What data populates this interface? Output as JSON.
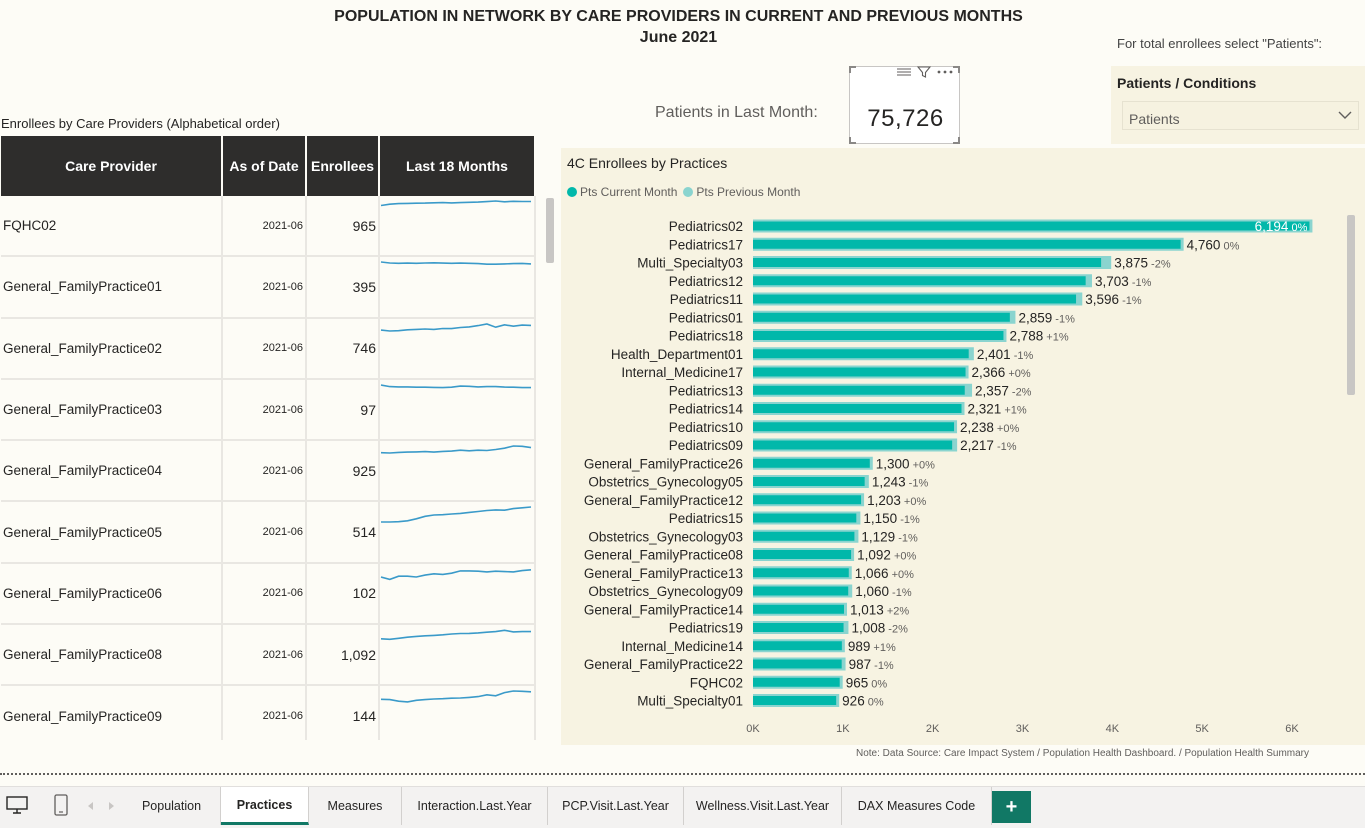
{
  "header": {
    "title_line1": "POPULATION IN NETWORK BY CARE PROVIDERS IN CURRENT AND PREVIOUS MONTHS",
    "title_line2": "June 2021"
  },
  "slicer": {
    "hint": "For total enrollees select \"Patients\":",
    "title": "Patients / Conditions",
    "selected": "Patients"
  },
  "kpi": {
    "label": "Patients in Last Month:",
    "value": "75,726"
  },
  "table": {
    "caption": "Enrollees by Care Providers (Alphabetical order)",
    "headers": [
      "Care Provider",
      "As of Date",
      "Enrollees",
      "Last 18 Months"
    ],
    "rows": [
      {
        "provider": "FQHC02",
        "date": "2021-06",
        "enrollees": "965",
        "trend": [
          0.72,
          0.8,
          0.84,
          0.85,
          0.86,
          0.87,
          0.89,
          0.9,
          0.88,
          0.9,
          0.92,
          0.93,
          0.96,
          1.0,
          0.95,
          0.98,
          0.97,
          0.97
        ]
      },
      {
        "provider": "General_FamilyPractice01",
        "date": "2021-06",
        "enrollees": "395",
        "trend": [
          1.0,
          0.94,
          0.92,
          0.93,
          0.92,
          0.94,
          0.95,
          0.93,
          0.92,
          0.93,
          0.92,
          0.9,
          0.86,
          0.86,
          0.88,
          0.9,
          0.91,
          0.88
        ]
      },
      {
        "provider": "General_FamilyPractice02",
        "date": "2021-06",
        "enrollees": "746",
        "trend": [
          0.62,
          0.56,
          0.58,
          0.64,
          0.66,
          0.69,
          0.66,
          0.72,
          0.71,
          0.78,
          0.82,
          0.9,
          1.0,
          0.8,
          0.95,
          0.86,
          0.93,
          0.91
        ]
      },
      {
        "provider": "General_FamilyPractice03",
        "date": "2021-06",
        "enrollees": "97",
        "trend": [
          1.0,
          0.9,
          0.88,
          0.88,
          0.86,
          0.86,
          0.85,
          0.84,
          0.86,
          0.93,
          0.92,
          0.88,
          0.9,
          0.9,
          0.87,
          0.86,
          0.84,
          0.84
        ]
      },
      {
        "provider": "General_FamilyPractice04",
        "date": "2021-06",
        "enrollees": "925",
        "trend": [
          0.58,
          0.56,
          0.6,
          0.62,
          0.63,
          0.65,
          0.62,
          0.66,
          0.68,
          0.74,
          0.7,
          0.74,
          0.72,
          0.78,
          0.86,
          1.0,
          0.98,
          0.9
        ]
      },
      {
        "provider": "General_FamilyPractice05",
        "date": "2021-06",
        "enrollees": "514",
        "trend": [
          0.06,
          0.06,
          0.08,
          0.14,
          0.26,
          0.42,
          0.5,
          0.52,
          0.56,
          0.6,
          0.66,
          0.72,
          0.78,
          0.82,
          0.8,
          0.9,
          0.95,
          1.0
        ]
      },
      {
        "provider": "General_FamilyPractice06",
        "date": "2021-06",
        "enrollees": "102",
        "trend": [
          0.5,
          0.35,
          0.55,
          0.55,
          0.5,
          0.62,
          0.7,
          0.66,
          0.74,
          0.88,
          0.88,
          0.86,
          0.82,
          0.86,
          0.84,
          0.82,
          0.9,
          0.95
        ]
      },
      {
        "provider": "General_FamilyPractice08",
        "date": "2021-06",
        "enrollees": "1,092",
        "trend": [
          0.45,
          0.42,
          0.48,
          0.55,
          0.6,
          0.64,
          0.66,
          0.7,
          0.75,
          0.78,
          0.79,
          0.82,
          0.86,
          0.9,
          0.98,
          0.88,
          0.9,
          0.9
        ]
      },
      {
        "provider": "General_FamilyPractice09",
        "date": "2021-06",
        "enrollees": "144",
        "trend": [
          0.48,
          0.46,
          0.36,
          0.32,
          0.42,
          0.46,
          0.5,
          0.52,
          0.55,
          0.56,
          0.6,
          0.65,
          0.76,
          0.7,
          0.9,
          1.0,
          0.98,
          0.95
        ]
      }
    ]
  },
  "chart_data": {
    "type": "bar",
    "title": "4C Enrollees by Practices",
    "legend": [
      "Pts Current Month",
      "Pts Previous Month"
    ],
    "categories": [
      "Pediatrics02",
      "Pediatrics17",
      "Multi_Specialty03",
      "Pediatrics12",
      "Pediatrics11",
      "Pediatrics01",
      "Pediatrics18",
      "Health_Department01",
      "Internal_Medicine17",
      "Pediatrics13",
      "Pediatrics14",
      "Pediatrics10",
      "Pediatrics09",
      "General_FamilyPractice26",
      "Obstetrics_Gynecology05",
      "General_FamilyPractice12",
      "Pediatrics15",
      "Obstetrics_Gynecology03",
      "General_FamilyPractice08",
      "General_FamilyPractice13",
      "Obstetrics_Gynecology09",
      "General_FamilyPractice14",
      "Pediatrics19",
      "Internal_Medicine14",
      "General_FamilyPractice22",
      "FQHC02",
      "Multi_Specialty01"
    ],
    "series": [
      {
        "name": "Pts Current Month",
        "values": [
          6194,
          4760,
          3875,
          3703,
          3596,
          2859,
          2788,
          2401,
          2366,
          2357,
          2321,
          2238,
          2217,
          1300,
          1243,
          1203,
          1150,
          1129,
          1092,
          1066,
          1060,
          1013,
          1008,
          989,
          987,
          965,
          926
        ]
      },
      {
        "name": "Pts Previous Month",
        "values": [
          6194,
          4760,
          3954,
          3740,
          3632,
          2888,
          2760,
          2425,
          2366,
          2405,
          2298,
          2238,
          2239,
          1300,
          1256,
          1203,
          1162,
          1140,
          1092,
          1066,
          1071,
          993,
          1029,
          979,
          997,
          965,
          926
        ]
      }
    ],
    "labels": [
      "6,194",
      "4,760",
      "3,875",
      "3,703",
      "3,596",
      "2,859",
      "2,788",
      "2,401",
      "2,366",
      "2,357",
      "2,321",
      "2,238",
      "2,217",
      "1,300",
      "1,243",
      "1,203",
      "1,150",
      "1,129",
      "1,092",
      "1,066",
      "1,060",
      "1,013",
      "1,008",
      "989",
      "987",
      "965",
      "926"
    ],
    "pct_change": [
      "0%",
      "0%",
      "-2%",
      "-1%",
      "-1%",
      "-1%",
      "+1%",
      "-1%",
      "+0%",
      "-2%",
      "+1%",
      "+0%",
      "-1%",
      "+0%",
      "-1%",
      "+0%",
      "-1%",
      "-1%",
      "+0%",
      "+0%",
      "-1%",
      "+2%",
      "-2%",
      "+1%",
      "-1%",
      "0%",
      "0%"
    ],
    "x_ticks": [
      "0K",
      "1K",
      "2K",
      "3K",
      "4K",
      "5K",
      "6K"
    ],
    "xlim": [
      0,
      6000
    ],
    "colors": {
      "current": "#01b8aa",
      "previous": "#8ad4cf"
    }
  },
  "note": "Note: Data Source: Care Impact System / Population Health Dashboard. / Population Health Summary",
  "tabs": [
    {
      "label": "Population",
      "active": false
    },
    {
      "label": "Practices",
      "active": true
    },
    {
      "label": "Measures",
      "active": false
    },
    {
      "label": "Interaction.Last.Year",
      "active": false
    },
    {
      "label": "PCP.Visit.Last.Year",
      "active": false
    },
    {
      "label": "Wellness.Visit.Last.Year",
      "active": false
    },
    {
      "label": "DAX Measures Code",
      "active": false
    }
  ],
  "add_tab_label": "+"
}
